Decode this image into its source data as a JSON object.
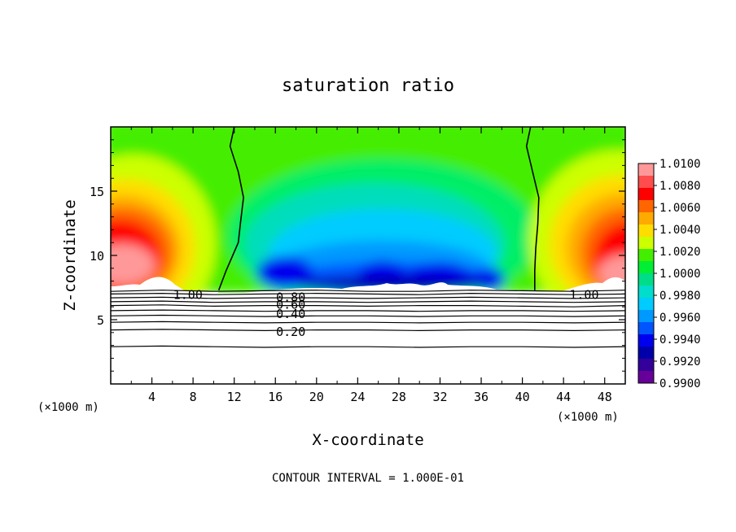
{
  "chart_data": {
    "type": "heatmap",
    "title": "saturation ratio",
    "xlabel": "X-coordinate",
    "ylabel": "Z-coordinate",
    "x_unit_left": "(×1000 m)",
    "x_unit_right": "(×1000 m)",
    "xlim": [
      0,
      50
    ],
    "ylim": [
      0,
      20
    ],
    "xticks": [
      4,
      8,
      12,
      16,
      20,
      24,
      28,
      32,
      36,
      40,
      44,
      48
    ],
    "yticks": [
      5,
      10,
      15
    ],
    "footer": "CONTOUR INTERVAL = 1.000E-01",
    "colorbar": {
      "min": 0.99,
      "max": 1.01,
      "labels": [
        "1.0100",
        "1.0080",
        "1.0060",
        "1.0040",
        "1.0020",
        "1.0000",
        "0.9980",
        "0.9960",
        "0.9940",
        "0.9920",
        "0.9900"
      ],
      "colors": [
        "#ff9999",
        "#ff4d4d",
        "#ff0000",
        "#ff6600",
        "#ffaa00",
        "#ffdd00",
        "#ccff00",
        "#44ee00",
        "#00ee33",
        "#00dd88",
        "#00ddcc",
        "#00ccff",
        "#0099ff",
        "#0055ff",
        "#0000ee",
        "#0000aa",
        "#330099",
        "#660099"
      ]
    },
    "contour_labels": [
      {
        "text": "1.00",
        "x": 7.5,
        "z": 7.0
      },
      {
        "text": "1.00",
        "x": 46.0,
        "z": 7.0
      },
      {
        "text": "0.80",
        "x": 17.5,
        "z": 6.8
      },
      {
        "text": "0.60",
        "x": 17.5,
        "z": 6.25
      },
      {
        "text": "0.40",
        "x": 17.5,
        "z": 5.5
      },
      {
        "text": "0.20",
        "x": 17.5,
        "z": 4.1
      }
    ],
    "contour_lines": [
      {
        "level": 1.0,
        "z": [
          7.2,
          7.3,
          7.2,
          7.25,
          7.3,
          7.2,
          7.2,
          7.3,
          7.25,
          7.2,
          7.3
        ]
      },
      {
        "level": 0.9,
        "z": [
          7.0,
          7.05,
          6.95,
          7.0,
          7.05,
          7.0,
          6.95,
          7.05,
          7.0,
          6.95,
          7.0
        ]
      },
      {
        "level": 0.8,
        "z": [
          6.7,
          6.75,
          6.65,
          6.7,
          6.7,
          6.65,
          6.7,
          6.75,
          6.7,
          6.65,
          6.7
        ]
      },
      {
        "level": 0.7,
        "z": [
          6.4,
          6.45,
          6.35,
          6.4,
          6.4,
          6.35,
          6.4,
          6.45,
          6.4,
          6.35,
          6.4
        ]
      },
      {
        "level": 0.6,
        "z": [
          6.1,
          6.15,
          6.05,
          6.1,
          6.1,
          6.05,
          6.1,
          6.1,
          6.05,
          6.0,
          6.1
        ]
      },
      {
        "level": 0.5,
        "z": [
          5.7,
          5.75,
          5.7,
          5.65,
          5.7,
          5.7,
          5.65,
          5.7,
          5.7,
          5.65,
          5.7
        ]
      },
      {
        "level": 0.4,
        "z": [
          5.3,
          5.35,
          5.3,
          5.25,
          5.3,
          5.3,
          5.25,
          5.3,
          5.3,
          5.25,
          5.3
        ]
      },
      {
        "level": 0.3,
        "z": [
          4.8,
          4.85,
          4.8,
          4.75,
          4.8,
          4.8,
          4.75,
          4.8,
          4.8,
          4.75,
          4.8
        ]
      },
      {
        "level": 0.2,
        "z": [
          4.2,
          4.25,
          4.2,
          4.15,
          4.2,
          4.2,
          4.15,
          4.2,
          4.2,
          4.15,
          4.2
        ]
      },
      {
        "level": 0.1,
        "z": [
          2.9,
          2.95,
          2.9,
          2.85,
          2.9,
          2.9,
          2.85,
          2.9,
          2.9,
          2.85,
          2.9
        ]
      }
    ],
    "sat_boundary_left": [
      [
        12.0,
        20
      ],
      [
        11.6,
        18.5
      ],
      [
        12.4,
        16.5
      ],
      [
        12.9,
        14.5
      ],
      [
        12.6,
        12.5
      ],
      [
        12.4,
        11
      ],
      [
        11.2,
        8.8
      ],
      [
        10.5,
        7.3
      ]
    ],
    "sat_boundary_right": [
      [
        40.8,
        20
      ],
      [
        40.4,
        18.5
      ],
      [
        41.0,
        16.5
      ],
      [
        41.6,
        14.5
      ],
      [
        41.5,
        12.5
      ],
      [
        41.3,
        10.5
      ],
      [
        41.2,
        8.8
      ],
      [
        41.2,
        7.3
      ]
    ]
  }
}
